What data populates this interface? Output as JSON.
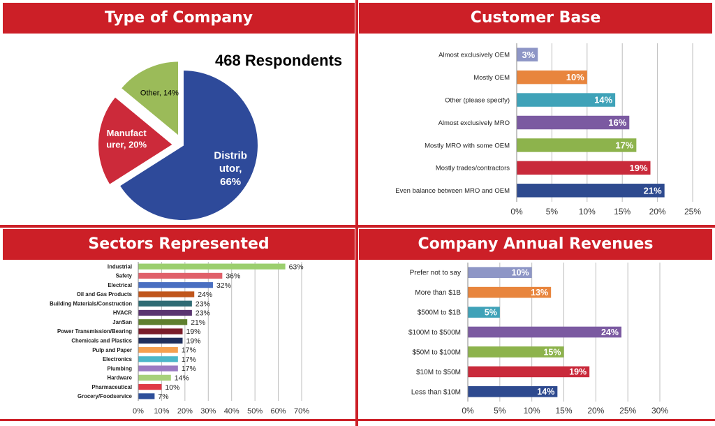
{
  "panels": {
    "type": "Type of Company",
    "customer": "Customer Base",
    "sectors": "Sectors Represented",
    "revenues": "Company Annual Revenues"
  },
  "respondents": "468 Respondents",
  "chart_data": [
    {
      "type": "pie",
      "title": "Type of Company",
      "slices": [
        {
          "label": "Distrib utor, 66%",
          "value": 66,
          "color": "#2e4a9a"
        },
        {
          "label": "Manufact urer, 20%",
          "value": 20,
          "color": "#cc2a3a"
        },
        {
          "label": "Other, 14%",
          "value": 14,
          "color": "#9bbb59"
        }
      ]
    },
    {
      "type": "bar",
      "orientation": "horizontal",
      "title": "Customer Base",
      "categories": [
        "Almost exclusively OEM",
        "Mostly OEM",
        "Other (please specify)",
        "Almost exclusively MRO",
        "Mostly MRO with some OEM",
        "Mostly trades/contractors",
        "Even balance between MRO and OEM"
      ],
      "values": [
        3,
        10,
        14,
        16,
        17,
        19,
        21
      ],
      "labels": [
        "3%",
        "10%",
        "14%",
        "16%",
        "17%",
        "19%",
        "21%"
      ],
      "colors": [
        "#8e96c6",
        "#e8853d",
        "#3fa2b8",
        "#7b5aa1",
        "#8db34c",
        "#c92a3b",
        "#2e4a8f"
      ],
      "xticks": [
        "0%",
        "5%",
        "10%",
        "15%",
        "20%",
        "25%"
      ],
      "xlim": [
        0,
        25
      ],
      "grid": true
    },
    {
      "type": "bar",
      "orientation": "horizontal",
      "title": "Sectors Represented",
      "categories": [
        "Industrial",
        "Safety",
        "Electrical",
        "Oil and Gas Products",
        "Building Materials/Construction",
        "HVACR",
        "JanSan",
        "Power Transmission/Bearing",
        "Chemicals and Plastics",
        "Pulp and Paper",
        "Electronics",
        "Plumbing",
        "Hardware",
        "Pharmaceutical",
        "Grocery/Foodservice"
      ],
      "values": [
        63,
        36,
        32,
        24,
        23,
        23,
        21,
        19,
        19,
        17,
        17,
        17,
        14,
        10,
        7
      ],
      "labels": [
        "63%",
        "36%",
        "32%",
        "24%",
        "23%",
        "23%",
        "21%",
        "19%",
        "19%",
        "17%",
        "17%",
        "17%",
        "14%",
        "10%",
        "7%"
      ],
      "colors": [
        "#9bcf6e",
        "#e0606a",
        "#4a6fc1",
        "#c0561c",
        "#2e6b74",
        "#5a3470",
        "#5f7f2e",
        "#7a1d2a",
        "#1f2f5c",
        "#f5a04f",
        "#4bb7c9",
        "#9b7ac2",
        "#a7d07a",
        "#e03a46",
        "#2e4f9a"
      ],
      "xticks": [
        "0%",
        "10%",
        "20%",
        "30%",
        "40%",
        "50%",
        "60%",
        "70%"
      ],
      "xlim": [
        0,
        70
      ],
      "grid": true
    },
    {
      "type": "bar",
      "orientation": "horizontal",
      "title": "Company Annual Revenues",
      "categories": [
        "Prefer not to say",
        "More than $1B",
        "$500M to $1B",
        "$100M to $500M",
        "$50M to $100M",
        "$10M to $50M",
        "Less than $10M"
      ],
      "values": [
        10,
        13,
        5,
        24,
        15,
        19,
        14
      ],
      "labels": [
        "10%",
        "13%",
        "5%",
        "24%",
        "15%",
        "19%",
        "14%"
      ],
      "colors": [
        "#8e96c6",
        "#e8853d",
        "#3fa2b8",
        "#7b5aa1",
        "#8db34c",
        "#c92a3b",
        "#2e4a8f"
      ],
      "xticks": [
        "0%",
        "5%",
        "10%",
        "15%",
        "20%",
        "25%",
        "30%"
      ],
      "xlim": [
        0,
        30
      ],
      "grid": true
    }
  ]
}
